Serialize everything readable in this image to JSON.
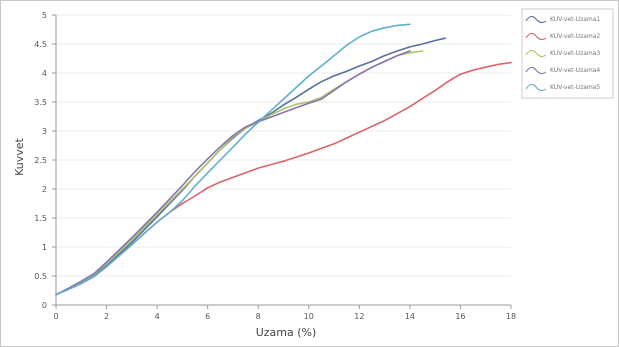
{
  "chart_data": {
    "type": "line",
    "xlabel": "Uzama (%)",
    "ylabel": "Kuvvet",
    "xlim": [
      0,
      18
    ],
    "ylim": [
      0,
      5
    ],
    "x_ticks": [
      "0",
      "2",
      "4",
      "6",
      "8",
      "10",
      "12",
      "14",
      "16",
      "18"
    ],
    "y_ticks": [
      "0",
      "0.5",
      "1",
      "1.5",
      "2",
      "2.5",
      "3",
      "3.5",
      "4",
      "4.5",
      "5"
    ],
    "legend_position": "top-right",
    "series": [
      {
        "name": "KUV-vet-Uzama1",
        "color": "#5a6e9a",
        "x": [
          0,
          0.5,
          1,
          1.5,
          2,
          2.5,
          3,
          3.5,
          4,
          4.5,
          5,
          5.5,
          6,
          6.5,
          7,
          7.5,
          8,
          8.5,
          9,
          9.5,
          10,
          10.5,
          11,
          11.5,
          12,
          12.5,
          13,
          13.5,
          14,
          14.5,
          15,
          15.4
        ],
        "y": [
          0.18,
          0.28,
          0.38,
          0.5,
          0.68,
          0.88,
          1.08,
          1.3,
          1.52,
          1.75,
          1.98,
          2.22,
          2.45,
          2.68,
          2.88,
          3.05,
          3.18,
          3.3,
          3.45,
          3.58,
          3.72,
          3.85,
          3.95,
          4.03,
          4.12,
          4.2,
          4.3,
          4.38,
          4.45,
          4.5,
          4.56,
          4.6
        ]
      },
      {
        "name": "KUV-vet-Uzama2",
        "color": "#d9636a",
        "x": [
          0,
          0.5,
          1,
          1.5,
          2,
          2.5,
          3,
          3.5,
          4,
          4.5,
          5,
          5.5,
          6,
          6.5,
          7,
          7.5,
          8,
          8.5,
          9,
          9.5,
          10,
          10.5,
          11,
          11.5,
          12,
          12.5,
          13,
          13.5,
          14,
          14.5,
          15,
          15.5,
          16,
          16.5,
          17,
          17.5,
          18
        ],
        "y": [
          0.18,
          0.27,
          0.37,
          0.49,
          0.66,
          0.85,
          1.04,
          1.24,
          1.43,
          1.6,
          1.75,
          1.88,
          2.02,
          2.12,
          2.2,
          2.28,
          2.36,
          2.42,
          2.48,
          2.55,
          2.62,
          2.7,
          2.78,
          2.88,
          2.98,
          3.08,
          3.18,
          3.3,
          3.42,
          3.56,
          3.7,
          3.85,
          3.98,
          4.05,
          4.1,
          4.15,
          4.18
        ]
      },
      {
        "name": "KUV-vet-Uzama3",
        "color": "#a9c66a",
        "x": [
          0,
          0.5,
          1,
          1.5,
          2,
          2.5,
          3,
          3.5,
          4,
          4.5,
          5,
          5.5,
          6,
          6.5,
          7,
          7.5,
          8,
          8.5,
          9,
          9.5,
          10,
          10.5,
          11,
          11.5,
          12,
          12.5,
          13,
          13.5,
          14,
          14.5
        ],
        "y": [
          0.18,
          0.28,
          0.4,
          0.53,
          0.72,
          0.92,
          1.12,
          1.34,
          1.56,
          1.78,
          2.0,
          2.22,
          2.45,
          2.68,
          2.9,
          3.05,
          3.15,
          3.28,
          3.38,
          3.46,
          3.5,
          3.58,
          3.72,
          3.85,
          3.98,
          4.1,
          4.2,
          4.3,
          4.35,
          4.38
        ]
      },
      {
        "name": "KUV-vet-Uzama4",
        "color": "#8a72b0",
        "x": [
          0,
          0.5,
          1,
          1.5,
          2,
          2.5,
          3,
          3.5,
          4,
          4.5,
          5,
          5.5,
          6,
          6.5,
          7,
          7.5,
          8,
          8.5,
          9,
          9.5,
          10,
          10.5,
          11,
          11.5,
          12,
          12.5,
          13,
          13.5,
          14
        ],
        "y": [
          0.18,
          0.29,
          0.41,
          0.54,
          0.74,
          0.95,
          1.16,
          1.38,
          1.6,
          1.83,
          2.06,
          2.3,
          2.52,
          2.73,
          2.92,
          3.07,
          3.16,
          3.24,
          3.32,
          3.4,
          3.48,
          3.55,
          3.7,
          3.85,
          3.98,
          4.1,
          4.2,
          4.3,
          4.38
        ]
      },
      {
        "name": "KUV-vet-Uzama5",
        "color": "#5fb0cf",
        "x": [
          0,
          0.5,
          1,
          1.5,
          2,
          2.5,
          3,
          3.5,
          4,
          4.5,
          5,
          5.5,
          6,
          6.5,
          7,
          7.5,
          8,
          8.5,
          9,
          9.5,
          10,
          10.5,
          11,
          11.5,
          12,
          12.5,
          13,
          13.5,
          14
        ],
        "y": [
          0.18,
          0.27,
          0.37,
          0.49,
          0.66,
          0.85,
          1.04,
          1.24,
          1.43,
          1.6,
          1.8,
          2.05,
          2.28,
          2.5,
          2.72,
          2.95,
          3.15,
          3.35,
          3.55,
          3.75,
          3.95,
          4.12,
          4.3,
          4.48,
          4.62,
          4.72,
          4.78,
          4.82,
          4.84
        ]
      }
    ]
  }
}
